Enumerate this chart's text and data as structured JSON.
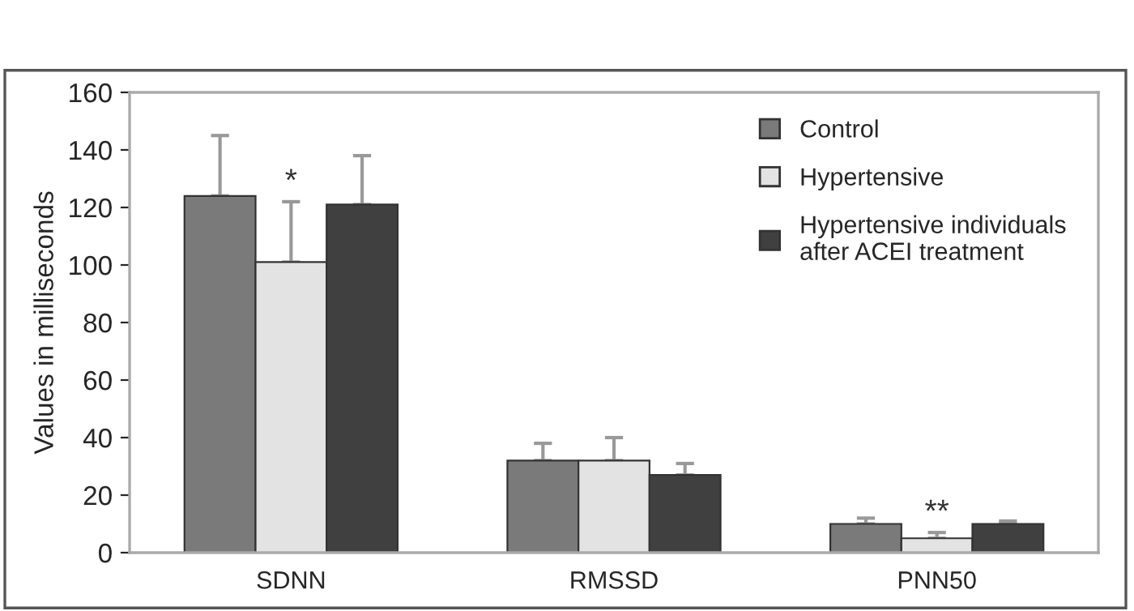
{
  "chart_data": {
    "type": "bar",
    "ylabel": "Values in milliseconds",
    "categories": [
      "SDNN",
      "RMSSD",
      "PNN50"
    ],
    "series": [
      {
        "name": "Control",
        "color": "#7a7a7a",
        "values": [
          124,
          32,
          10
        ],
        "errors": [
          [
            124,
            145
          ],
          [
            32,
            38
          ],
          [
            10,
            12
          ]
        ]
      },
      {
        "name": "Hypertensive",
        "color": "#e3e3e3",
        "values": [
          101,
          32,
          5
        ],
        "errors": [
          [
            101,
            122
          ],
          [
            32,
            40
          ],
          [
            5,
            7
          ]
        ]
      },
      {
        "name": "Hypertensive individuals\nafter ACEI treatment",
        "color": "#404040",
        "values": [
          121,
          27,
          10
        ],
        "errors": [
          [
            121,
            138
          ],
          [
            27,
            31
          ],
          [
            10,
            11
          ]
        ]
      }
    ],
    "ylim": [
      0,
      160
    ],
    "yticks": [
      0,
      20,
      40,
      60,
      80,
      100,
      120,
      140,
      160
    ],
    "grid": false,
    "legend": "top right",
    "annotations": [
      "*",
      "**"
    ]
  }
}
